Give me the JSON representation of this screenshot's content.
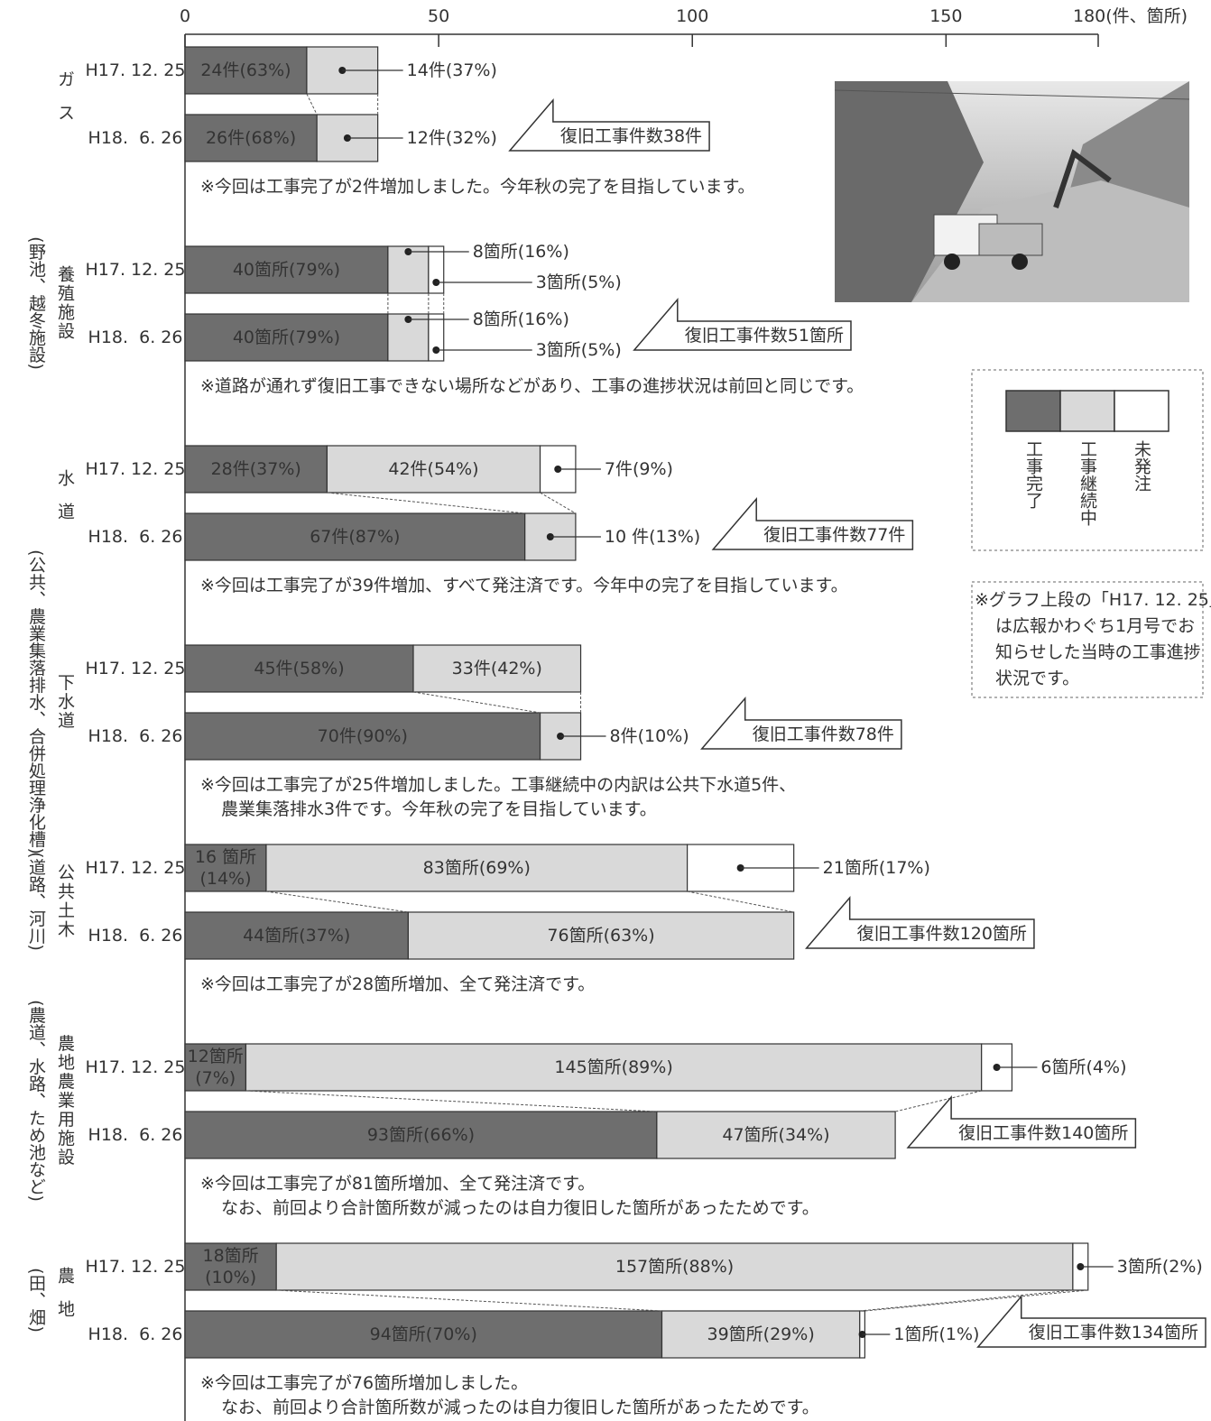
{
  "chart_data": {
    "type": "bar",
    "xlim": [
      0,
      180
    ],
    "xticks": [
      0,
      50,
      100,
      150,
      {
        "value": 180,
        "label": "180(件、箇所)"
      }
    ],
    "series": [
      {
        "name": "工事完了",
        "color": "#6e6e6e"
      },
      {
        "name": "工事継続中",
        "color": "#d9d9d9"
      },
      {
        "name": "未発注",
        "color": "#ffffff"
      }
    ],
    "groups": [
      {
        "name": "ガス",
        "rows": [
          {
            "date": "H17. 12. 25",
            "values": [
              24,
              14
            ],
            "value_labels": [
              "24件(63%)",
              "14件(37%)"
            ]
          },
          {
            "date": "H18.  6. 26",
            "values": [
              26,
              12
            ],
            "value_labels": [
              "26件(68%)",
              "12件(32%)"
            ]
          }
        ],
        "total": "復旧工事件数38件",
        "note": [
          "※今回は工事完了が2件増加しました。今年秋の完了を目指しています。"
        ]
      },
      {
        "name": "養殖施設",
        "subname": "(野池、越冬施設)",
        "rows": [
          {
            "date": "H17. 12. 25",
            "values": [
              40,
              8,
              3
            ],
            "value_labels": [
              "40箇所(79%)",
              "8箇所(16%)",
              "3箇所(5%)"
            ]
          },
          {
            "date": "H18.  6. 26",
            "values": [
              40,
              8,
              3
            ],
            "value_labels": [
              "40箇所(79%)",
              "8箇所(16%)",
              "3箇所(5%)"
            ]
          }
        ],
        "total": "復旧工事件数51箇所",
        "note": [
          "※道路が通れず復旧工事できない場所などがあり、工事の進捗状況は前回と同じです。"
        ]
      },
      {
        "name": "水道",
        "rows": [
          {
            "date": "H17. 12. 25",
            "values": [
              28,
              42,
              7
            ],
            "value_labels": [
              "28件(37%)",
              "42件(54%)",
              "7件(9%)"
            ]
          },
          {
            "date": "H18.  6. 26",
            "values": [
              67,
              10
            ],
            "value_labels": [
              "67件(87%)",
              "10 件(13%)"
            ]
          }
        ],
        "total": "復旧工事件数77件",
        "note": [
          "※今回は工事完了が39件増加、すべて発注済です。今年中の完了を目指しています。"
        ]
      },
      {
        "name": "下水道",
        "subname": "(公共、農業集落排水、合併処理浄化槽)",
        "rows": [
          {
            "date": "H17. 12. 25",
            "values": [
              45,
              33
            ],
            "value_labels": [
              "45件(58%)",
              "33件(42%)"
            ]
          },
          {
            "date": "H18.  6. 26",
            "values": [
              70,
              8
            ],
            "value_labels": [
              "70件(90%)",
              "8件(10%)"
            ]
          }
        ],
        "total": "復旧工事件数78件",
        "note": [
          "※今回は工事完了が25件増加しました。工事継続中の内訳は公共下水道5件、",
          "農業集落排水3件です。今年秋の完了を目指しています。"
        ]
      },
      {
        "name": "公共土木",
        "subname": "(道路、河川)",
        "rows": [
          {
            "date": "H17. 12. 25",
            "values": [
              16,
              83,
              21
            ],
            "value_labels": [
              "16 箇所(14%)",
              "83箇所(69%)",
              "21箇所(17%)"
            ]
          },
          {
            "date": "H18.  6. 26",
            "values": [
              44,
              76
            ],
            "value_labels": [
              "44箇所(37%)",
              "76箇所(63%)"
            ]
          }
        ],
        "total": "復旧工事件数120箇所",
        "note": [
          "※今回は工事完了が28箇所増加、全て発注済です。"
        ]
      },
      {
        "name": "農地農業用施設",
        "subname": "(農道、水路、ため池など)",
        "rows": [
          {
            "date": "H17. 12. 25",
            "values": [
              12,
              145,
              6
            ],
            "value_labels": [
              "12箇所(7%)",
              "145箇所(89%)",
              "6箇所(4%)"
            ]
          },
          {
            "date": "H18.  6. 26",
            "values": [
              93,
              47
            ],
            "value_labels": [
              "93箇所(66%)",
              "47箇所(34%)"
            ]
          }
        ],
        "total": "復旧工事件数140箇所",
        "note": [
          "※今回は工事完了が81箇所増加、全て発注済です。",
          "なお、前回より合計箇所数が減ったのは自力復旧した箇所があったためです。"
        ]
      },
      {
        "name": "農地",
        "subname": "(田、畑)",
        "rows": [
          {
            "date": "H17. 12. 25",
            "values": [
              18,
              157,
              3
            ],
            "value_labels": [
              "18箇所(10%)",
              "157箇所(88%)",
              "3箇所(2%)"
            ]
          },
          {
            "date": "H18.  6. 26",
            "values": [
              94,
              39,
              1
            ],
            "value_labels": [
              "94箇所(70%)",
              "39箇所(29%)",
              "1箇所(1%)"
            ]
          }
        ],
        "total": "復旧工事件数134箇所",
        "note": [
          "※今回は工事完了が76箇所増加しました。",
          "なお、前回より合計箇所数が減ったのは自力復旧した箇所があったためです。"
        ]
      }
    ],
    "side_note": [
      "※グラフ上段の「H17. 12. 25」",
      "は広報かわぐち1月号でお",
      "知らせした当時の工事進捗",
      "状況です。"
    ]
  }
}
